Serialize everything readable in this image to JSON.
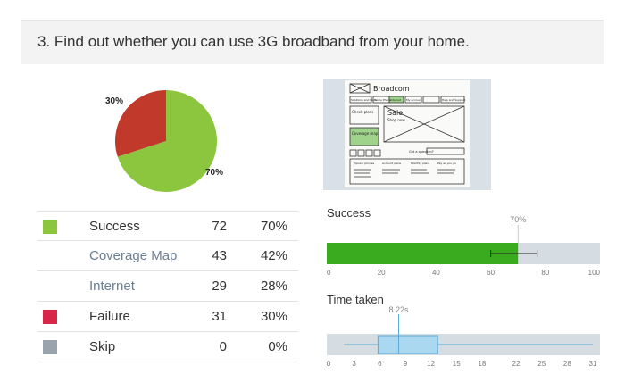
{
  "question": {
    "title": "3. Find out whether you can use 3G broadband from your home."
  },
  "colors": {
    "success": "#8cc63f",
    "failure": "#c0392b",
    "failure_swatch": "#d9254a",
    "skip": "#9aa3ab",
    "bar_fill": "#3aab1e",
    "track": "#d6dde2",
    "box_fill": "#a9d8f0",
    "box_stroke": "#5aaad6"
  },
  "thumbnail": {
    "brand": "Broadcom",
    "nav": [
      "Solutions and Plans",
      "Home Phone",
      "Internet",
      "My Account",
      "Help and Support"
    ],
    "promo": "Sale",
    "promo_sub": "Shop now",
    "buttons": [
      "Check plans",
      "Coverage map"
    ],
    "footer": [
      "Popular phones",
      "Account plans",
      "Monthly plans",
      "Pay as you go"
    ],
    "search": "Got a question?"
  },
  "results": [
    {
      "label": "Success",
      "count": "72",
      "pct": "70%",
      "indent": false,
      "swatch": "success"
    },
    {
      "label": "Coverage Map",
      "count": "43",
      "pct": "42%",
      "indent": true,
      "swatch": ""
    },
    {
      "label": "Internet",
      "count": "29",
      "pct": "28%",
      "indent": true,
      "swatch": ""
    },
    {
      "label": "Failure",
      "count": "31",
      "pct": "30%",
      "indent": false,
      "swatch": "failure_swatch"
    },
    {
      "label": "Skip",
      "count": "0",
      "pct": "0%",
      "indent": false,
      "swatch": "skip"
    }
  ],
  "chart_data": [
    {
      "type": "pie",
      "slices": [
        {
          "label": "70%",
          "value": 70,
          "color": "#8cc63f"
        },
        {
          "label": "30%",
          "value": 30,
          "color": "#c0392b"
        }
      ]
    },
    {
      "type": "bar",
      "title": "Success",
      "value": 70,
      "value_label": "70%",
      "error_low": 60,
      "error_high": 77,
      "xlim": [
        0,
        100
      ],
      "ticks": [
        "0",
        "20",
        "40",
        "60",
        "80",
        "100"
      ]
    },
    {
      "type": "box",
      "title": "Time taken",
      "median": 8.22,
      "median_label": "8.22s",
      "q1": 5.8,
      "q3": 12.8,
      "whisker_low": 1.8,
      "whisker_high": 31,
      "xlim": [
        0,
        31
      ],
      "ticks": [
        "0",
        "3",
        "6",
        "9",
        "12",
        "15",
        "18",
        "22",
        "25",
        "28",
        "31"
      ]
    }
  ]
}
